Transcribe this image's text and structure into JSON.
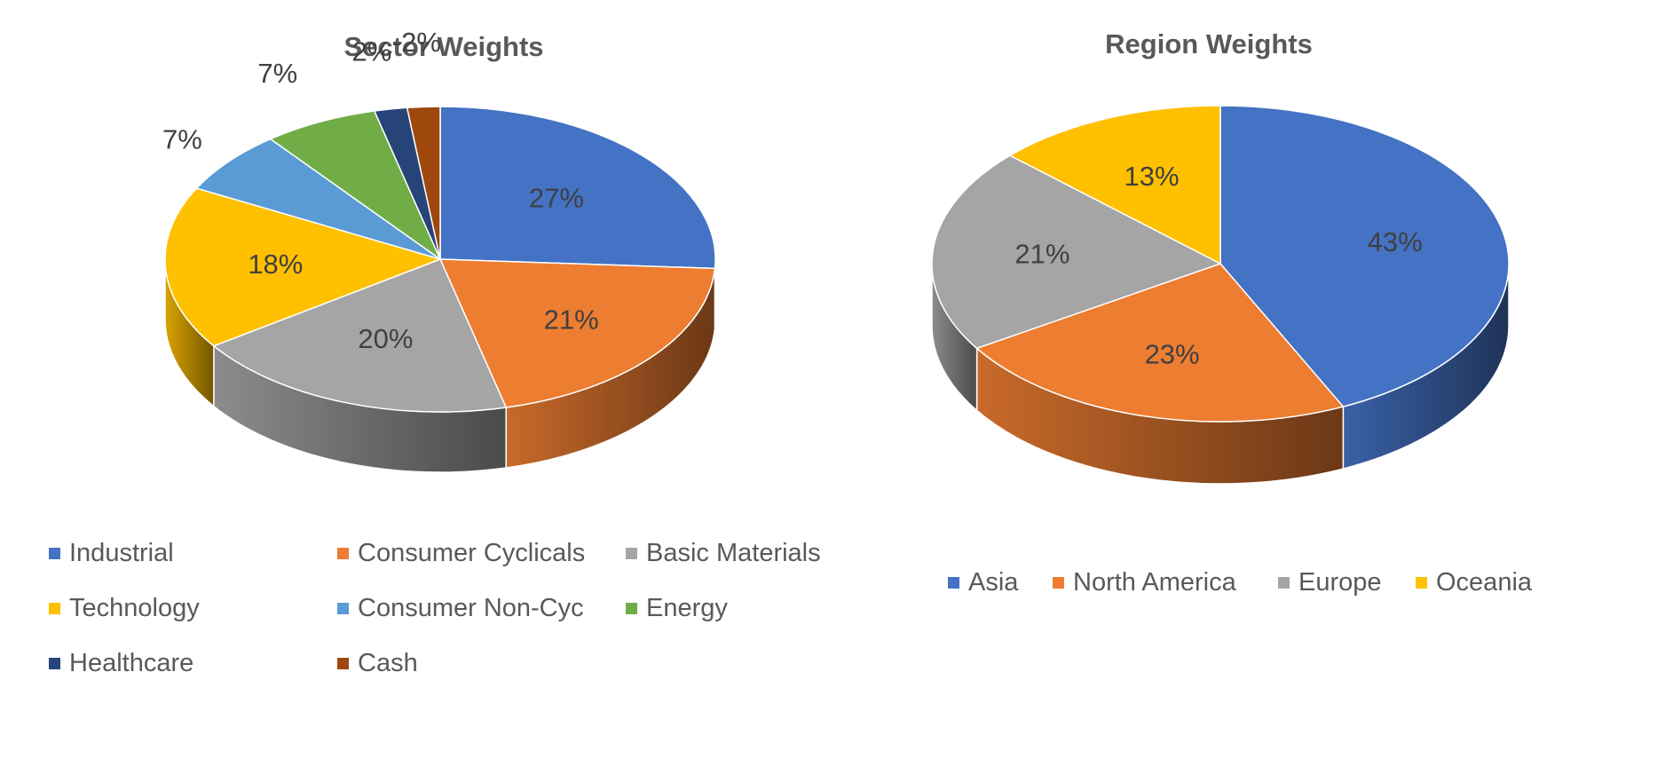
{
  "chart_data": [
    {
      "type": "pie",
      "title": "Sector Weights",
      "categories": [
        "Industrial",
        "Consumer Cyclicals",
        "Basic Materials",
        "Technology",
        "Consumer Non-Cyc",
        "Energy",
        "Healthcare",
        "Cash"
      ],
      "values": [
        27,
        21,
        20,
        18,
        7,
        7,
        2,
        -2
      ],
      "data_labels": [
        "27%",
        "21%",
        "20%",
        "18%",
        "7%",
        "7%",
        "2%",
        "-2%"
      ],
      "colors": [
        "#4472C4",
        "#ED7D31",
        "#A5A5A5",
        "#FFC000",
        "#5B9BD5",
        "#70AD47",
        "#264478",
        "#9E480E"
      ],
      "legend_position": "bottom",
      "style": "3d"
    },
    {
      "type": "pie",
      "title": "Region Weights",
      "categories": [
        "Asia",
        "North America",
        "Europe",
        "Oceania"
      ],
      "values": [
        43,
        23,
        21,
        13
      ],
      "data_labels": [
        "43%",
        "23%",
        "21%",
        "13%"
      ],
      "colors": [
        "#4472C4",
        "#ED7D31",
        "#A5A5A5",
        "#FFC000"
      ],
      "legend_position": "bottom",
      "style": "3d"
    }
  ]
}
